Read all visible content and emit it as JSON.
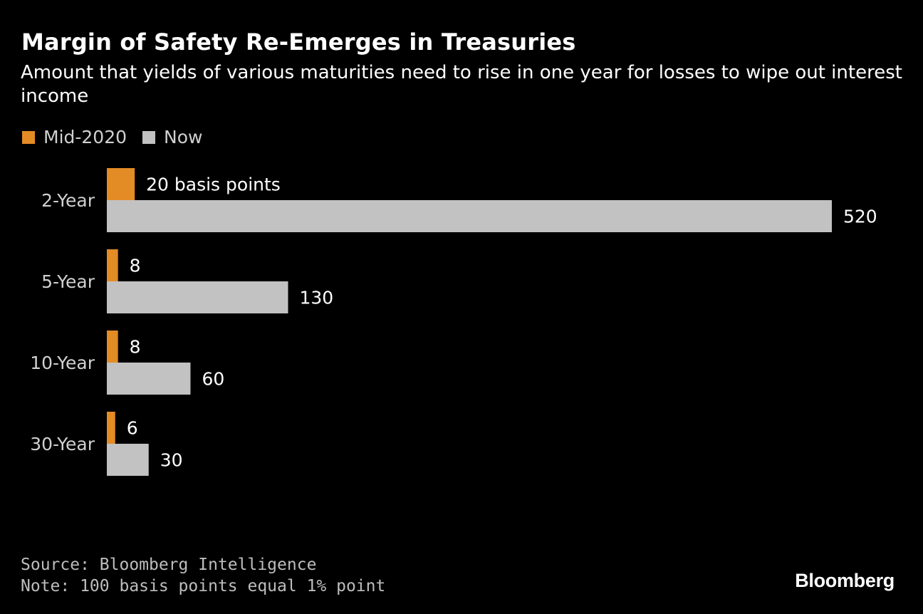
{
  "header": {
    "title": "Margin of Safety Re-Emerges in Treasuries",
    "subtitle": "Amount that yields of various maturities need to rise in one year for losses to wipe out interest income"
  },
  "legend": {
    "items": [
      {
        "label": "Mid-2020",
        "color": "#E38B25"
      },
      {
        "label": "Now",
        "color": "#C2C2C2"
      }
    ]
  },
  "chart_data": {
    "type": "bar",
    "orientation": "horizontal",
    "title": "Margin of Safety Re-Emerges in Treasuries",
    "subtitle": "Amount that yields of various maturities need to rise in one year for losses to wipe out interest income",
    "xlabel": "",
    "ylabel": "",
    "unit": "basis points",
    "categories": [
      "2-Year",
      "5-Year",
      "10-Year",
      "30-Year"
    ],
    "series": [
      {
        "name": "Mid-2020",
        "color": "#E38B25",
        "values": [
          20,
          8,
          8,
          6
        ],
        "data_labels": [
          "20 basis points",
          "8",
          "8",
          "6"
        ]
      },
      {
        "name": "Now",
        "color": "#C2C2C2",
        "values": [
          520,
          130,
          60,
          30
        ],
        "data_labels": [
          "520",
          "130",
          "60",
          "30"
        ]
      }
    ],
    "xlim": [
      0,
      520
    ],
    "grid": false,
    "legend_position": "top-left"
  },
  "footer": {
    "source": "Source: Bloomberg Intelligence",
    "note": "Note: 100 basis points equal 1% point",
    "brand": "Bloomberg"
  }
}
